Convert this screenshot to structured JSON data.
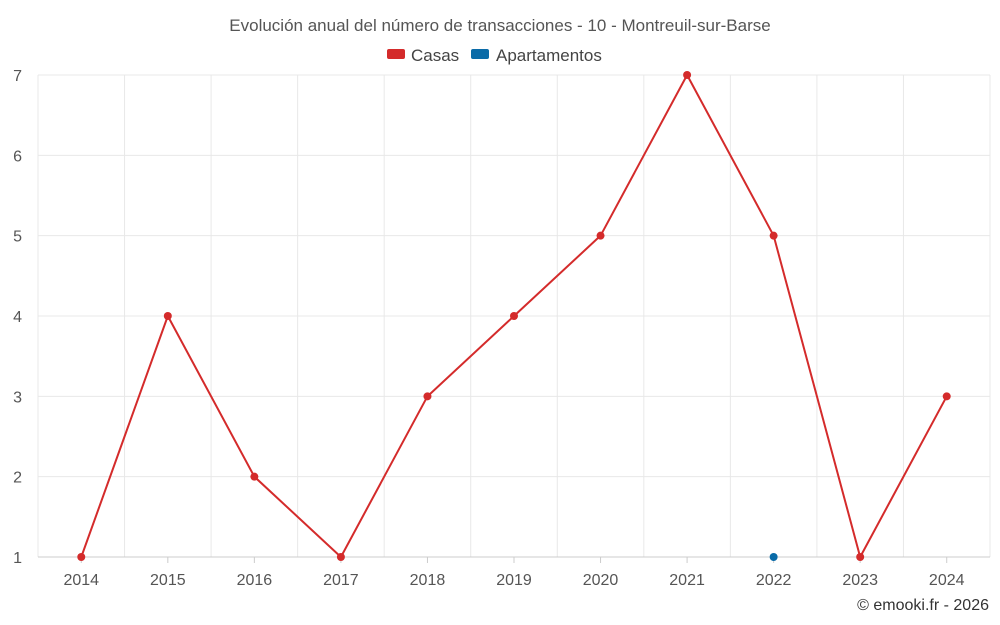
{
  "chart_data": {
    "type": "line",
    "title": "Evolución anual del número de transacciones - 10 - Montreuil-sur-Barse",
    "categories": [
      "2014",
      "2015",
      "2016",
      "2017",
      "2018",
      "2019",
      "2020",
      "2021",
      "2022",
      "2023",
      "2024"
    ],
    "series": [
      {
        "name": "Casas",
        "color": "#d42b2b",
        "values": [
          1,
          4,
          2,
          1,
          3,
          4,
          5,
          7,
          5,
          1,
          3
        ]
      },
      {
        "name": "Apartamentos",
        "color": "#0a6ba8",
        "values": [
          null,
          null,
          null,
          null,
          null,
          null,
          null,
          null,
          1,
          null,
          null
        ]
      }
    ],
    "yticks": [
      1,
      2,
      3,
      4,
      5,
      6,
      7
    ],
    "ylim": [
      1,
      7
    ],
    "xlabel": "",
    "ylabel": "",
    "grid": true,
    "legend_position": "top-center"
  },
  "credit": "© emooki.fr - 2026"
}
